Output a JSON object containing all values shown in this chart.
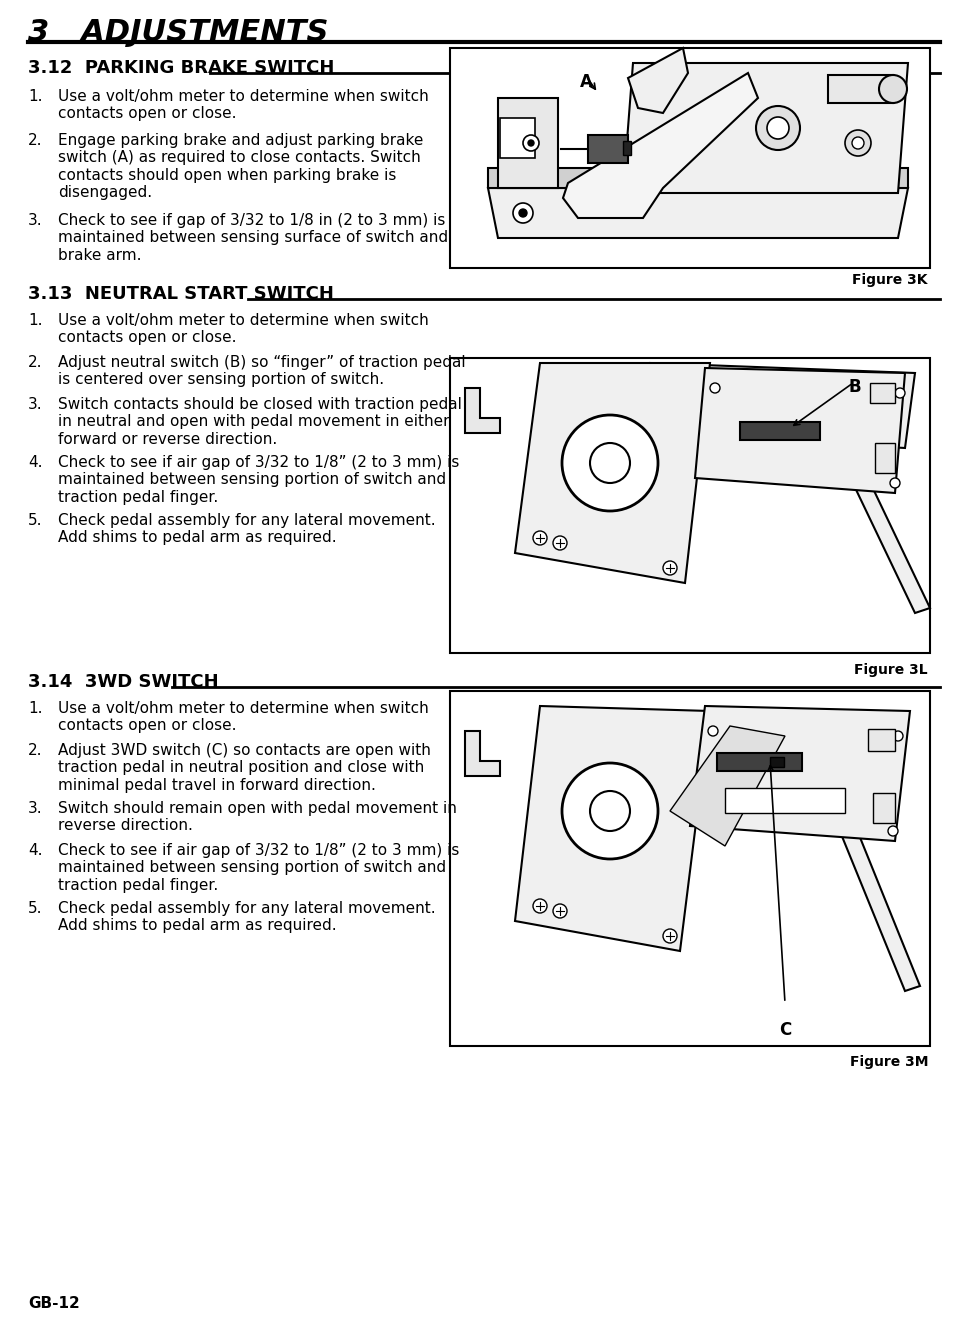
{
  "page_title": "3   ADJUSTMENTS",
  "section_312_title": "3.12  PARKING BRAKE SWITCH",
  "section_313_title": "3.13  NEUTRAL START SWITCH",
  "section_314_title": "3.14  3WD SWITCH",
  "fig_3k_label": "Figure 3K",
  "fig_3l_label": "Figure 3L",
  "fig_3m_label": "Figure 3M",
  "footer": "GB-12",
  "bg_color": "#ffffff",
  "text_color": "#000000",
  "section_312_items": [
    "Use a volt/ohm meter to determine when switch\ncontacts open or close.",
    "Engage parking brake and adjust parking brake\nswitch (A) as required to close contacts. Switch\ncontacts should open when parking brake is\ndisengaged.",
    "Check to see if gap of 3/32 to 1/8 in (2 to 3 mm) is\nmaintained between sensing surface of switch and\nbrake arm."
  ],
  "section_313_items": [
    "Use a volt/ohm meter to determine when switch\ncontacts open or close.",
    "Adjust neutral switch (B) so “finger” of traction pedal\nis centered over sensing portion of switch.",
    "Switch contacts should be closed with traction pedal\nin neutral and open with pedal movement in either\nforward or reverse direction.",
    "Check to see if air gap of 3/32 to 1/8” (2 to 3 mm) is\nmaintained between sensing portion of switch and\ntraction pedal finger.",
    "Check pedal assembly for any lateral movement.\nAdd shims to pedal arm as required."
  ],
  "section_314_items": [
    "Use a volt/ohm meter to determine when switch\ncontacts open or close.",
    "Adjust 3WD switch (C) so contacts are open with\ntraction pedal in neutral position and close with\nminimal pedal travel in forward direction.",
    "Switch should remain open with pedal movement in\nreverse direction.",
    "Check to see if air gap of 3/32 to 1/8” (2 to 3 mm) is\nmaintained between sensing portion of switch and\ntraction pedal finger.",
    "Check pedal assembly for any lateral movement.\nAdd shims to pedal arm as required."
  ]
}
